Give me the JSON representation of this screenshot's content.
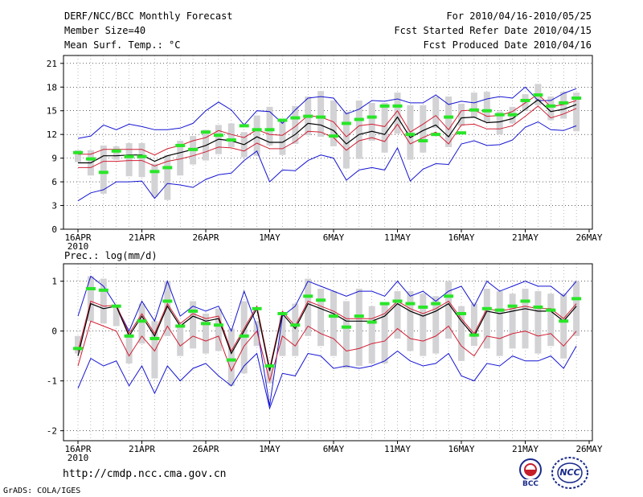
{
  "header": {
    "title": "DERF/NCC/BCC Monthly Forecast",
    "member_size": "Member Size=40",
    "variable": "Mean Surf. Temp.: °C",
    "period": "For 2010/04/16-2010/05/25",
    "started": "Fcst Started Refer Date 2010/04/15",
    "produced": "Fcst Produced Date 2010/04/16"
  },
  "footer": {
    "url": "http://cmdp.ncc.cma.gov.cn",
    "credit": "GrADS: COLA/IGES",
    "logo_bcc": "BCC",
    "logo_ncc": "NCC"
  },
  "colors": {
    "box": "#d3d3d6",
    "spread": "#1414d2",
    "sigma": "#d21e32",
    "mean": "#000000",
    "obs": "#28e628",
    "grid": "#000000"
  },
  "chart_data": [
    {
      "id": "temperature",
      "type": "box-line",
      "title": "",
      "ylabel": "Mean Surf. Temp.: °C",
      "ylim": [
        0,
        22
      ],
      "yticks": [
        0,
        3,
        6,
        9,
        12,
        15,
        18,
        21
      ],
      "x_tick_labels": [
        "16APR",
        "21APR",
        "26APR",
        "1MAY",
        "6MAY",
        "11MAY",
        "16MAY",
        "21MAY",
        "26MAY"
      ],
      "x_tick_days": [
        0,
        5,
        10,
        15,
        20,
        25,
        30,
        35,
        40
      ],
      "x_sublabel": "2010",
      "days": [
        0,
        1,
        2,
        3,
        4,
        5,
        6,
        7,
        8,
        9,
        10,
        11,
        12,
        13,
        14,
        15,
        16,
        17,
        18,
        19,
        20,
        21,
        22,
        23,
        24,
        25,
        26,
        27,
        28,
        29,
        30,
        31,
        32,
        33,
        34,
        35,
        36,
        37,
        38,
        39
      ],
      "max": [
        11.5,
        11.8,
        13.2,
        12.6,
        13.3,
        13.0,
        12.6,
        12.6,
        12.8,
        13.4,
        15.0,
        16.1,
        15.1,
        13.2,
        15.0,
        14.9,
        13.4,
        15.1,
        16.6,
        16.8,
        16.6,
        14.6,
        15.2,
        16.3,
        16.2,
        16.5,
        16.0,
        16.0,
        17.0,
        15.8,
        16.2,
        16.0,
        16.5,
        16.8,
        16.6,
        18.0,
        16.3,
        16.3,
        17.2,
        17.8
      ],
      "p75": [
        9.5,
        9.0,
        9.9,
        9.7,
        9.7,
        9.9,
        9.2,
        9.7,
        10.3,
        11.1,
        11.6,
        12.6,
        11.9,
        11.3,
        12.6,
        12.2,
        11.3,
        12.5,
        14.1,
        14.0,
        13.6,
        11.8,
        12.7,
        12.9,
        13.1,
        14.8,
        12.3,
        13.2,
        14.0,
        12.5,
        14.7,
        15.0,
        14.6,
        14.3,
        14.7,
        16.2,
        17.1,
        15.6,
        16.1,
        16.2
      ],
      "mean": [
        8.4,
        8.4,
        9.3,
        9.3,
        9.4,
        9.4,
        8.6,
        9.3,
        9.7,
        10.1,
        10.6,
        11.4,
        11.2,
        10.7,
        11.7,
        11.0,
        11.0,
        12.0,
        13.4,
        13.2,
        12.5,
        10.8,
        12.0,
        12.4,
        12.0,
        14.2,
        11.6,
        12.5,
        13.2,
        11.7,
        14.1,
        14.2,
        13.5,
        13.6,
        14.0,
        15.2,
        16.4,
        14.9,
        15.2,
        15.8
      ],
      "p25": [
        7.4,
        7.6,
        8.3,
        8.4,
        8.5,
        8.5,
        7.6,
        8.4,
        8.8,
        9.3,
        9.6,
        10.1,
        10.0,
        9.7,
        10.8,
        10.0,
        9.8,
        11.2,
        12.3,
        12.1,
        11.1,
        9.9,
        11.2,
        11.7,
        10.8,
        13.4,
        10.8,
        11.7,
        12.0,
        10.9,
        13.2,
        13.6,
        12.9,
        13.0,
        13.3,
        14.2,
        15.6,
        14.2,
        14.5,
        15.3
      ],
      "plus_sigma": [
        9.5,
        9.5,
        10.1,
        10.1,
        10.1,
        10.1,
        9.4,
        10.2,
        10.6,
        11.2,
        11.6,
        12.5,
        12.0,
        11.6,
        12.6,
        12.0,
        11.9,
        13.0,
        14.4,
        14.2,
        13.6,
        11.7,
        13.1,
        13.3,
        13.0,
        15.0,
        12.3,
        13.3,
        14.4,
        12.6,
        15.0,
        15.1,
        14.3,
        14.4,
        14.9,
        16.0,
        17.1,
        15.5,
        15.8,
        16.3
      ],
      "minus_sigma": [
        7.8,
        7.8,
        8.6,
        8.6,
        8.7,
        8.7,
        8.0,
        8.6,
        8.9,
        9.3,
        9.8,
        10.4,
        10.3,
        9.9,
        10.9,
        10.2,
        10.2,
        11.1,
        12.4,
        12.3,
        11.6,
        10.0,
        11.2,
        11.6,
        11.1,
        13.3,
        10.8,
        11.6,
        12.3,
        10.8,
        13.2,
        13.3,
        12.7,
        12.7,
        13.1,
        14.3,
        15.6,
        14.1,
        14.6,
        15.3
      ],
      "min": [
        3.6,
        4.6,
        5.0,
        6.0,
        6.0,
        6.1,
        3.9,
        5.8,
        5.6,
        5.3,
        6.3,
        6.9,
        7.1,
        8.7,
        9.9,
        6.0,
        7.5,
        7.4,
        8.7,
        9.4,
        9.0,
        6.2,
        7.5,
        7.8,
        7.5,
        10.3,
        6.1,
        7.6,
        8.3,
        8.2,
        10.8,
        11.2,
        10.6,
        10.7,
        11.3,
        12.9,
        13.6,
        12.6,
        12.5,
        13.1
      ],
      "box_top": [
        10.0,
        10.0,
        10.6,
        10.5,
        10.9,
        10.9,
        8.3,
        9.4,
        11.2,
        11.8,
        12.6,
        13.2,
        13.4,
        12.3,
        14.4,
        15.5,
        13.6,
        15.6,
        16.8,
        17.5,
        16.3,
        14.9,
        16.3,
        16.0,
        16.0,
        17.3,
        15.7,
        15.7,
        16.8,
        16.8,
        15.9,
        17.3,
        17.4,
        14.9,
        15.5,
        17.1,
        18.4,
        16.8,
        17.4,
        17.3
      ],
      "box_bottom": [
        8.5,
        6.8,
        4.5,
        8.8,
        6.7,
        6.6,
        4.1,
        3.7,
        6.8,
        8.2,
        8.7,
        9.5,
        10.4,
        9.1,
        9.3,
        10.6,
        9.4,
        10.8,
        11.9,
        11.7,
        10.5,
        7.7,
        8.9,
        11.2,
        9.7,
        12.1,
        8.8,
        9.7,
        12.8,
        10.4,
        13.1,
        14.1,
        13.6,
        12.0,
        13.4,
        15.0,
        15.7,
        13.8,
        14.0,
        12.4
      ],
      "obs": [
        9.7,
        8.9,
        7.2,
        9.9,
        9.2,
        9.2,
        7.3,
        7.8,
        10.6,
        10.1,
        12.3,
        11.9,
        11.3,
        13.1,
        12.6,
        12.6,
        13.8,
        14.1,
        14.3,
        14.2,
        11.8,
        13.4,
        13.9,
        14.2,
        15.6,
        15.6,
        12.0,
        11.2,
        12.0,
        14.2,
        12.2,
        15.1,
        15.0,
        14.5,
        14.5,
        16.3,
        17.0,
        15.6,
        16.0,
        16.6
      ]
    },
    {
      "id": "precipitation",
      "type": "box-line",
      "title": "Prec.: log(mm/d)",
      "ylim": [
        -2.2,
        1.35
      ],
      "yticks": [
        -2,
        -1,
        0,
        1
      ],
      "x_tick_labels": [
        "16APR",
        "21APR",
        "26APR",
        "1MAY",
        "6MAY",
        "11MAY",
        "16MAY",
        "21MAY",
        "26MAY"
      ],
      "x_tick_days": [
        0,
        5,
        10,
        15,
        20,
        25,
        30,
        35,
        40
      ],
      "x_sublabel": "2010",
      "days": [
        0,
        1,
        2,
        3,
        4,
        5,
        6,
        7,
        8,
        9,
        10,
        11,
        12,
        13,
        14,
        15,
        16,
        17,
        18,
        19,
        20,
        21,
        22,
        23,
        24,
        25,
        26,
        27,
        28,
        29,
        30,
        31,
        32,
        33,
        34,
        35,
        36,
        37,
        38,
        39
      ],
      "max": [
        0.3,
        1.1,
        0.9,
        0.5,
        0.0,
        0.6,
        0.2,
        1.0,
        0.3,
        0.5,
        0.4,
        0.5,
        0.0,
        0.8,
        0.1,
        -1.5,
        0.3,
        0.5,
        1.0,
        0.9,
        0.8,
        0.7,
        0.8,
        0.8,
        0.7,
        1.0,
        0.7,
        0.8,
        0.6,
        0.8,
        0.9,
        0.5,
        1.0,
        0.8,
        0.9,
        1.0,
        0.9,
        0.9,
        0.7,
        1.0
      ],
      "p75": [
        -0.3,
        0.65,
        0.55,
        0.55,
        0.0,
        0.35,
        0.0,
        0.55,
        0.2,
        0.4,
        0.3,
        0.3,
        -0.3,
        0.1,
        0.45,
        -0.6,
        0.45,
        0.1,
        0.65,
        0.5,
        0.4,
        0.25,
        0.2,
        0.25,
        0.4,
        0.6,
        0.5,
        0.4,
        0.5,
        0.65,
        0.3,
        -0.05,
        0.5,
        0.45,
        0.5,
        0.55,
        0.5,
        0.45,
        0.3,
        0.55
      ],
      "mean": [
        -0.5,
        0.55,
        0.45,
        0.5,
        -0.1,
        0.3,
        -0.1,
        0.5,
        0.1,
        0.3,
        0.2,
        0.25,
        -0.45,
        0.0,
        0.45,
        -0.8,
        0.35,
        0.05,
        0.55,
        0.45,
        0.35,
        0.2,
        0.2,
        0.2,
        0.3,
        0.55,
        0.4,
        0.3,
        0.4,
        0.55,
        0.2,
        -0.1,
        0.4,
        0.35,
        0.4,
        0.45,
        0.4,
        0.4,
        0.2,
        0.5
      ],
      "p25": [
        -0.65,
        0.45,
        0.35,
        0.45,
        -0.2,
        0.2,
        -0.25,
        0.45,
        0.0,
        0.2,
        0.1,
        0.15,
        -0.6,
        -0.15,
        0.4,
        -0.95,
        0.25,
        -0.05,
        0.45,
        0.35,
        0.3,
        0.15,
        0.15,
        0.15,
        0.2,
        0.45,
        0.3,
        0.2,
        0.3,
        0.45,
        0.1,
        -0.2,
        0.3,
        0.25,
        0.3,
        0.35,
        0.3,
        0.3,
        0.1,
        0.45
      ],
      "plus_sigma": [
        -0.4,
        0.6,
        0.5,
        0.52,
        -0.05,
        0.35,
        -0.05,
        0.55,
        0.15,
        0.35,
        0.25,
        0.3,
        -0.4,
        0.05,
        0.5,
        -0.75,
        0.4,
        0.1,
        0.6,
        0.5,
        0.4,
        0.25,
        0.25,
        0.25,
        0.35,
        0.6,
        0.45,
        0.35,
        0.45,
        0.6,
        0.25,
        -0.05,
        0.45,
        0.4,
        0.45,
        0.5,
        0.45,
        0.45,
        0.25,
        0.55
      ],
      "minus_sigma": [
        -0.7,
        0.2,
        0.1,
        0.0,
        -0.5,
        -0.1,
        -0.4,
        0.1,
        -0.3,
        -0.1,
        -0.2,
        -0.1,
        -0.8,
        -0.3,
        0.0,
        -1.0,
        -0.1,
        -0.3,
        0.1,
        -0.05,
        -0.15,
        -0.4,
        -0.35,
        -0.25,
        -0.2,
        0.05,
        -0.15,
        -0.2,
        -0.1,
        0.1,
        -0.3,
        -0.5,
        -0.1,
        -0.15,
        -0.05,
        0.0,
        -0.1,
        -0.05,
        -0.3,
        0.0
      ],
      "min": [
        -1.15,
        -0.55,
        -0.7,
        -0.6,
        -1.1,
        -0.7,
        -1.25,
        -0.7,
        -1.0,
        -0.75,
        -0.65,
        -0.9,
        -1.1,
        -0.7,
        -0.45,
        -1.55,
        -0.85,
        -0.9,
        -0.45,
        -0.5,
        -0.75,
        -0.7,
        -0.75,
        -0.7,
        -0.6,
        -0.4,
        -0.6,
        -0.7,
        -0.65,
        -0.45,
        -0.9,
        -1.0,
        -0.65,
        -0.7,
        -0.5,
        -0.6,
        -0.6,
        -0.5,
        -0.75,
        -0.3
      ],
      "box_top": [
        -0.1,
        1.1,
        1.05,
        0.5,
        -0.05,
        0.55,
        0.2,
        1.0,
        0.1,
        0.6,
        0.35,
        0.45,
        0.05,
        0.6,
        0.2,
        -0.65,
        0.3,
        0.55,
        1.05,
        0.85,
        0.8,
        0.6,
        0.85,
        0.5,
        0.55,
        0.8,
        0.8,
        0.75,
        0.7,
        1.0,
        0.5,
        0.55,
        0.85,
        0.8,
        0.75,
        0.85,
        0.8,
        0.75,
        0.75,
        1.0
      ],
      "box_bottom": [
        -0.45,
        0.2,
        0.15,
        0.1,
        -0.65,
        -0.25,
        -0.95,
        -0.1,
        -0.5,
        -0.35,
        -0.45,
        -0.4,
        -1.1,
        -0.85,
        -0.3,
        -1.05,
        -0.5,
        -0.5,
        -0.1,
        -0.3,
        -0.5,
        -0.75,
        -0.7,
        -0.65,
        -0.65,
        -0.15,
        -0.4,
        -0.5,
        -0.45,
        -0.15,
        -0.6,
        -0.3,
        -0.35,
        -0.5,
        -0.35,
        -0.35,
        -0.45,
        -0.3,
        -0.55,
        -0.1
      ],
      "obs": [
        -0.35,
        0.85,
        0.82,
        0.5,
        -0.1,
        0.2,
        -0.15,
        0.6,
        0.1,
        0.4,
        0.15,
        0.12,
        -0.58,
        -0.1,
        0.45,
        -0.7,
        0.35,
        0.12,
        0.7,
        0.62,
        0.3,
        0.08,
        0.3,
        0.18,
        0.55,
        0.6,
        0.55,
        0.48,
        0.55,
        0.7,
        0.35,
        -0.08,
        0.45,
        0.42,
        0.5,
        0.6,
        0.48,
        0.42,
        0.2,
        0.65
      ]
    }
  ]
}
